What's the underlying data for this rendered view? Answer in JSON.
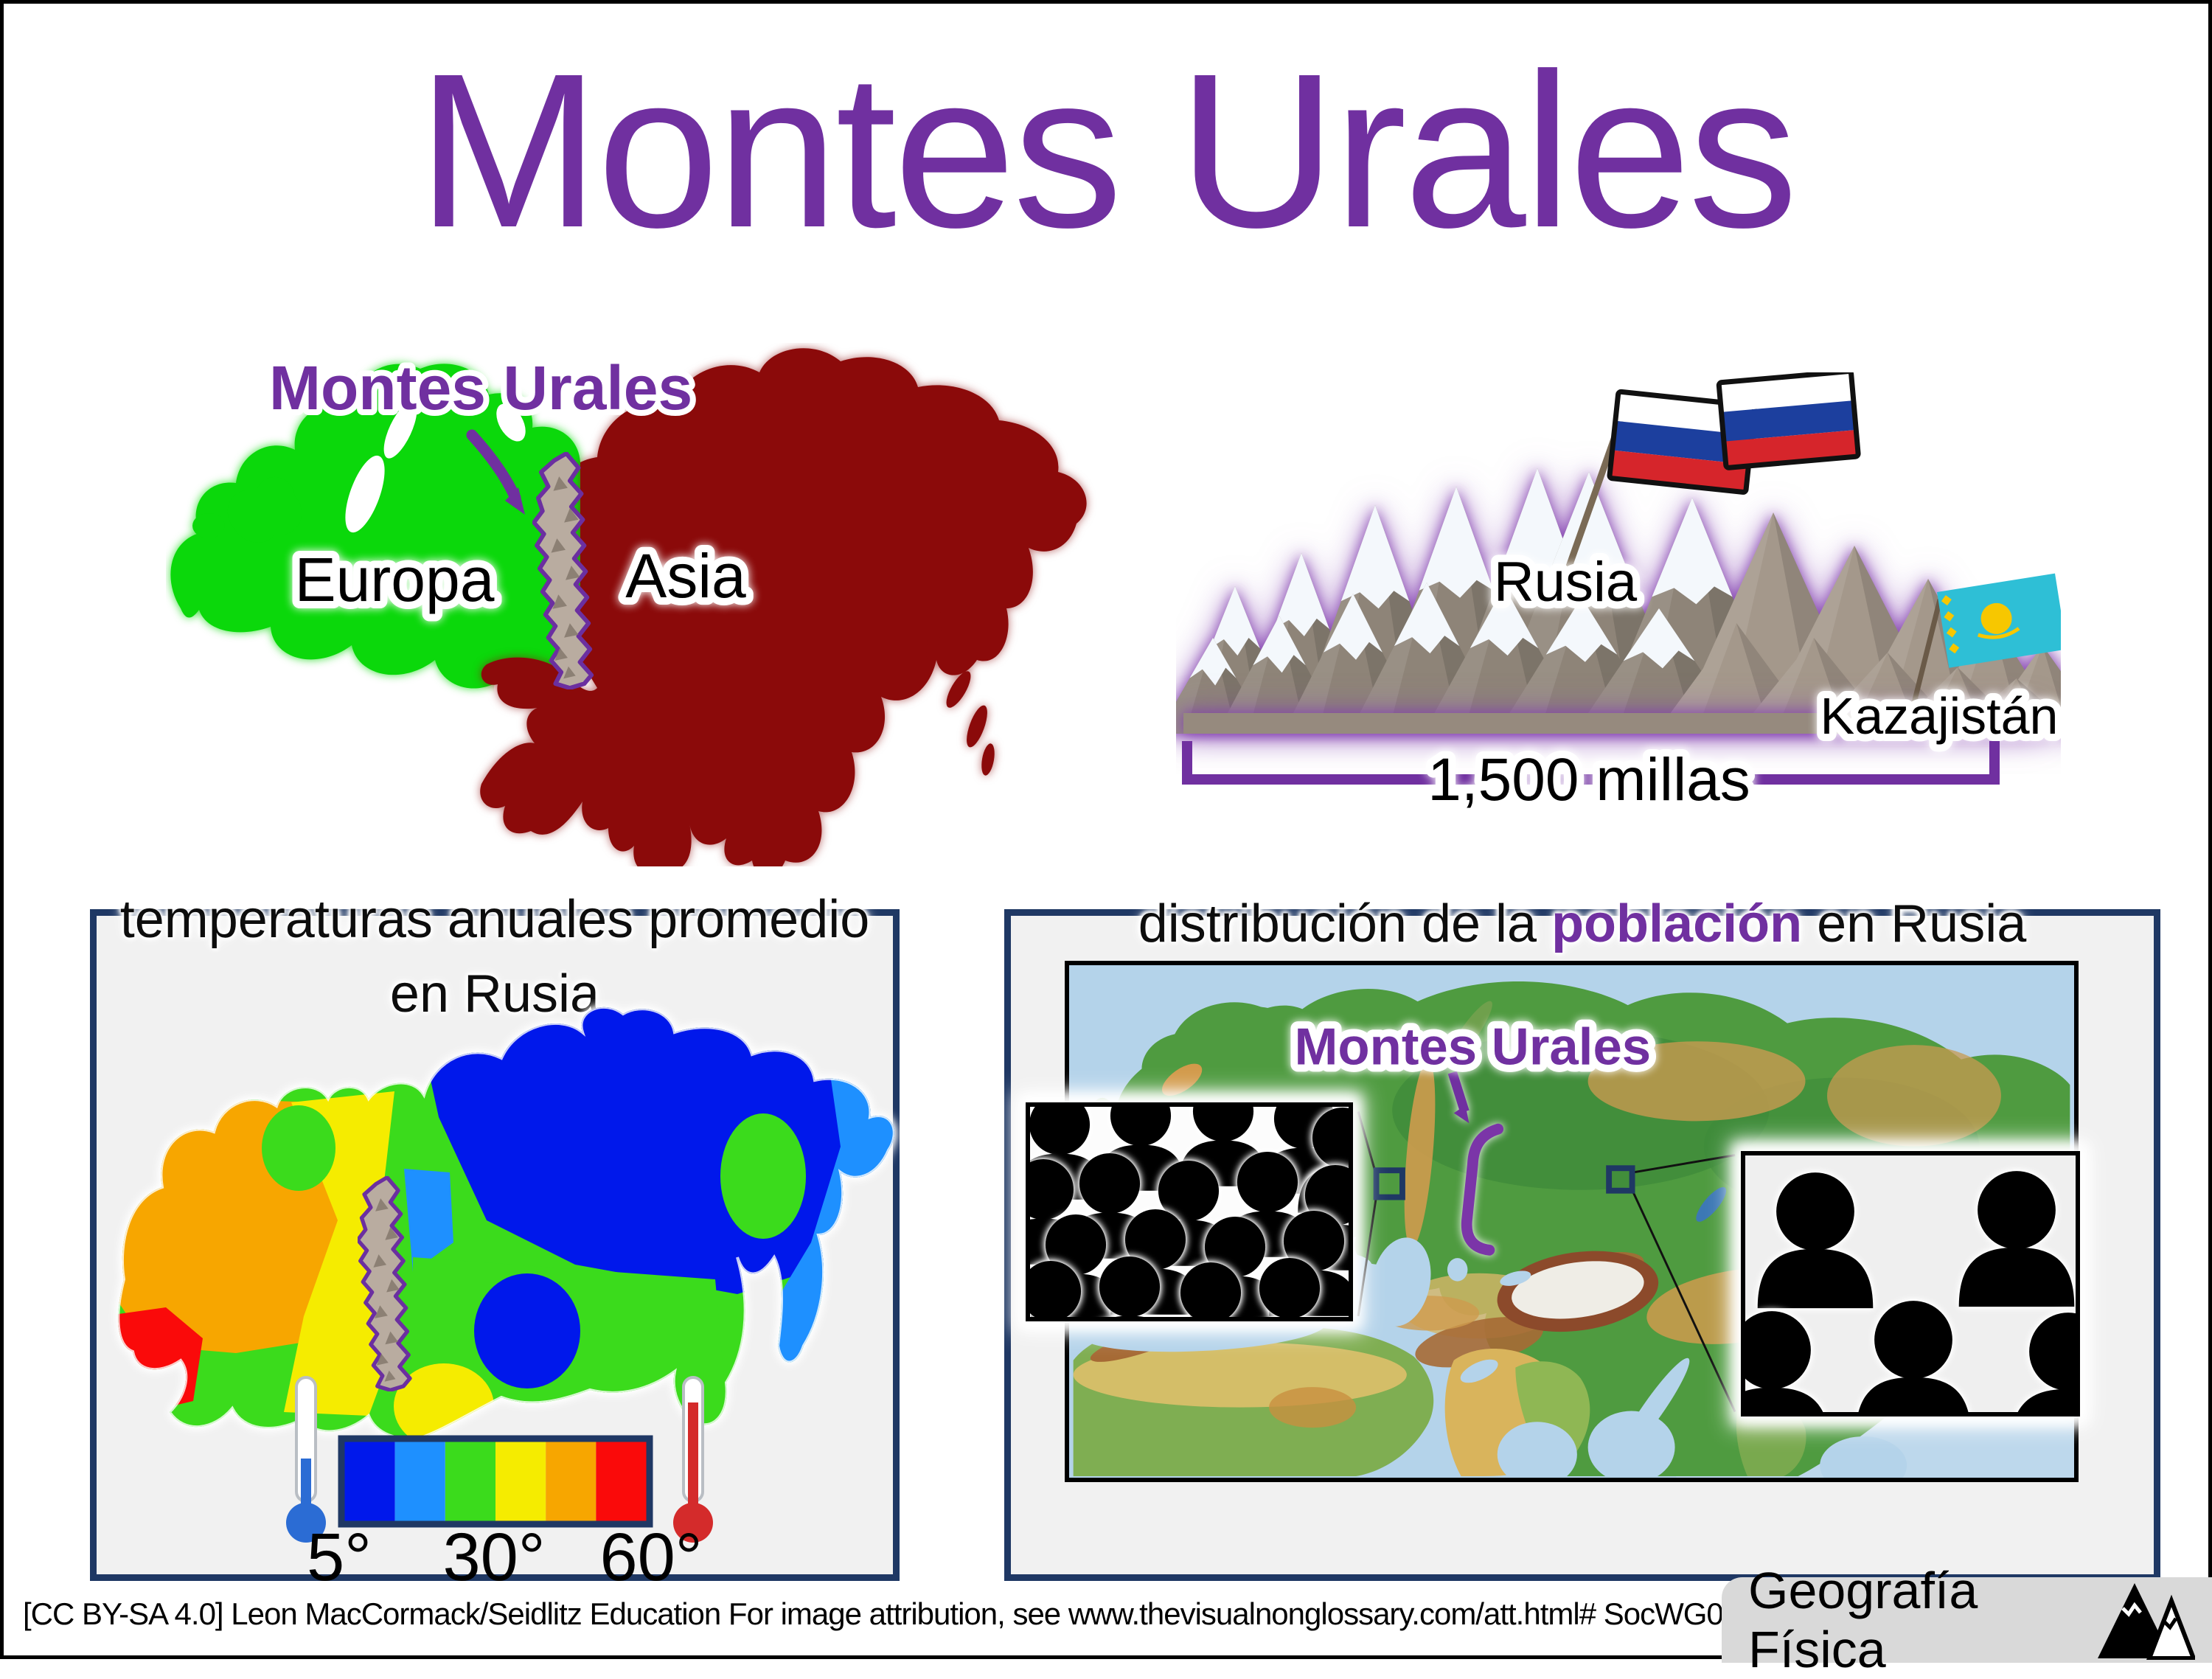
{
  "page": {
    "title": "Montes Urales",
    "attribution": "[CC BY-SA 4.0] Leon MacCormack/Seidlitz Education For image attribution, see www.thevisualnonglossary.com/att.html# SocWG068",
    "badge_label": "Geografía Física"
  },
  "colors": {
    "accent_purple": "#7030A0",
    "europe_green": "#0BD80B",
    "asia_dark_red": "#8B0A0A",
    "panel_border_navy": "#1F3864",
    "panel_bg": "#F1F1F1",
    "badge_bg": "#D9D9D9",
    "flag_russia": [
      "#FFFFFF",
      "#1C3F9E",
      "#D6252B"
    ],
    "flag_kazakhstan": "#2EBFD6",
    "snow_white": "#F4F8FC",
    "rock_gray": "#A4988B"
  },
  "continents_map": {
    "callout_label": "Montes Urales",
    "europe_label": "Europa",
    "asia_label": "Asia"
  },
  "range_diagram": {
    "russia_label": "Rusia",
    "kazakhstan_label": "Kazajistán",
    "distance_label": "1,500 millas"
  },
  "temperature_panel": {
    "title_line1": "temperaturas anuales promedio",
    "title_line2": "en Rusia",
    "legend_labels": [
      "5°",
      "30°",
      "60°"
    ],
    "legend_colors": [
      "#0018EB",
      "#1E90FF",
      "#3BDB1C",
      "#F5EC00",
      "#F7A600",
      "#FA0A0A"
    ]
  },
  "population_panel": {
    "title_prefix": "distribución de la ",
    "title_highlight": "población",
    "title_suffix": " en Rusia",
    "callout_label": "Montes Urales",
    "dense_icon_count": 18,
    "sparse_icon_count": 5
  }
}
